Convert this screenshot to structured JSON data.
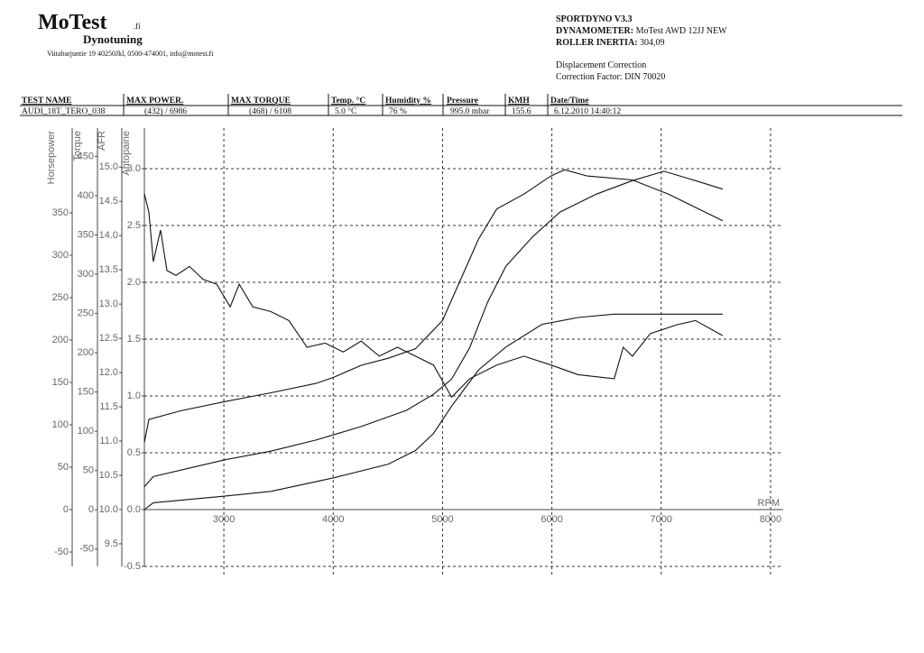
{
  "header": {
    "logo": "MoTest",
    "logo_suffix": ".fi",
    "subtitle": "Dynotuning",
    "address": "Viitabarjuntie 19 40250Jkl, 0500-474001, info@motest.fi",
    "software": "SPORTDYNO V3.3",
    "dynamometer_label": "DYNAMOMETER:",
    "dynamometer": "MoTest AWD 12JJ NEW",
    "inertia_label": "ROLLER INERTIA:",
    "inertia": "304,09",
    "correction": "Displacement Correction",
    "correction_factor": "Correction Factor: DIN 70020"
  },
  "table": {
    "columns": [
      "TEST NAME",
      "MAX POWER.",
      "MAX TORQUE",
      "Temp. °C",
      "Humidity %",
      "Pressure",
      "KMH",
      "Date/Time"
    ],
    "rows": [
      [
        "AUDI_18T_TERO_038",
        "(432) / 6986",
        "(468) / 6108",
        "5.0 °C",
        "76 %",
        "995.0 mbar",
        "155.6",
        "6.12.2010 14:40:12"
      ]
    ]
  },
  "chart_data": {
    "type": "line",
    "x_label": "RPM",
    "xlim": [
      2273,
      8116
    ],
    "xticks": [
      3000,
      4000,
      5000,
      6000,
      7000,
      8000
    ],
    "grid": true,
    "axes": [
      {
        "title": "Horsepower",
        "ylim": [
          -67,
          450
        ],
        "yticks": [
          -50,
          0,
          50,
          100,
          150,
          200,
          250,
          300,
          350
        ]
      },
      {
        "title": "Torque",
        "ylim": [
          -72,
          486
        ],
        "yticks": [
          -50,
          0,
          50,
          100,
          150,
          200,
          250,
          300,
          350,
          400,
          450
        ]
      },
      {
        "title": "AFR",
        "ylim": [
          9.17,
          15.57
        ],
        "yticks": [
          9.5,
          {
            "value": 10,
            "label": "10.0"
          },
          10.5,
          {
            "value": 11,
            "label": "11.0"
          },
          11.5,
          {
            "value": 12,
            "label": "12.0"
          },
          12.5,
          {
            "value": 13,
            "label": "13.0"
          },
          13.5,
          {
            "value": 14,
            "label": "14.0"
          },
          14.5,
          {
            "value": 15,
            "label": "15.0"
          }
        ]
      },
      {
        "title": "Ahtopaine",
        "ylim": [
          -0.5,
          3.357
        ],
        "yticks": [
          -0.5,
          {
            "value": 0,
            "label": "0.0"
          },
          0.5,
          {
            "value": 1,
            "label": "1.0"
          },
          1.5,
          {
            "value": 2,
            "label": "2.0"
          },
          2.5,
          {
            "value": 3,
            "label": "3.0"
          }
        ]
      }
    ],
    "series": [
      {
        "axis": 1,
        "color": "#111111",
        "x": [
          2273,
          2314,
          2603,
          3017,
          3430,
          3843,
          4008,
          4256,
          4504,
          4752,
          5000,
          5165,
          5331,
          5496,
          5744,
          5992,
          6116,
          6322,
          6736,
          7066,
          7314,
          7562
        ],
        "values": [
          86,
          115,
          126,
          138,
          149,
          161,
          169,
          184,
          193,
          205,
          241,
          293,
          345,
          383,
          402,
          425,
          433,
          425,
          420,
          402,
          385,
          368
        ]
      },
      {
        "axis": 0,
        "color": "#111111",
        "x": [
          2273,
          2355,
          3017,
          3430,
          3843,
          4256,
          4669,
          4917,
          5083,
          5248,
          5413,
          5579,
          5826,
          6074,
          6405,
          6736,
          7025,
          7314,
          7562
        ],
        "values": [
          27,
          39,
          59,
          69,
          82,
          98,
          117,
          136,
          154,
          191,
          245,
          287,
          322,
          351,
          372,
          388,
          399,
          388,
          378
        ]
      },
      {
        "axis": 3,
        "color": "#111111",
        "x": [
          2273,
          2355,
          3017,
          3430,
          4008,
          4504,
          4752,
          4917,
          5083,
          5331,
          5579,
          5909,
          6240,
          6570,
          7066,
          7562
        ],
        "values": [
          0,
          0.06,
          0.12,
          0.16,
          0.28,
          0.4,
          0.52,
          0.67,
          0.91,
          1.23,
          1.43,
          1.63,
          1.69,
          1.72,
          1.72,
          1.72
        ]
      },
      {
        "axis": 2,
        "color": "#111111",
        "x": [
          2273,
          2314,
          2355,
          2421,
          2479,
          2562,
          2686,
          2810,
          2934,
          3058,
          3140,
          3264,
          3430,
          3595,
          3760,
          3926,
          4091,
          4256,
          4421,
          4587,
          4752,
          4917,
          5083,
          5248,
          5496,
          5744,
          5992,
          6240,
          6570,
          6653,
          6736,
          6901,
          7149,
          7314,
          7562
        ],
        "values": [
          14.61,
          14.34,
          13.62,
          14.08,
          13.49,
          13.42,
          13.55,
          13.36,
          13.29,
          12.96,
          13.29,
          12.96,
          12.89,
          12.76,
          12.37,
          12.43,
          12.3,
          12.46,
          12.24,
          12.37,
          12.24,
          12.11,
          11.64,
          11.91,
          12.11,
          12.24,
          12.11,
          11.97,
          11.91,
          12.37,
          12.24,
          12.57,
          12.7,
          12.76,
          12.54
        ]
      }
    ]
  }
}
